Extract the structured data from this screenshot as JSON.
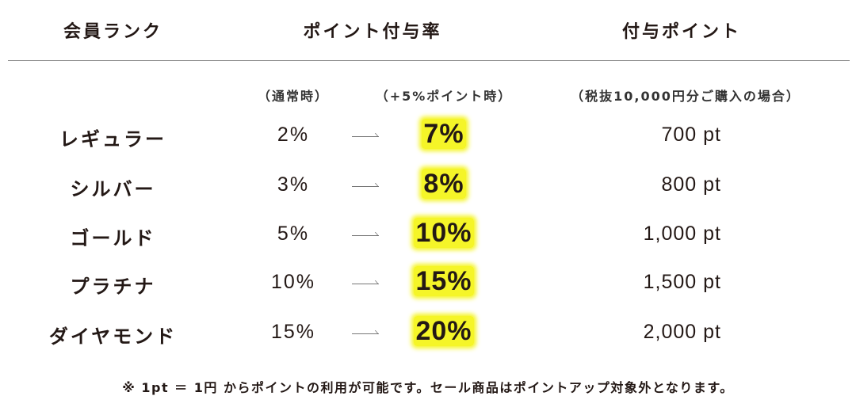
{
  "header": {
    "col_rank": "会員ランク",
    "col_rate": "ポイント付与率",
    "col_points": "付与ポイント"
  },
  "subheader": {
    "normal": "（通常時）",
    "boost": "（+5%ポイント時）",
    "points": "（税抜10,000円分ご購入の場合）"
  },
  "rows": [
    {
      "rank": "レギュラー",
      "base": "2%",
      "boost": "7%",
      "points": "700 pt"
    },
    {
      "rank": "シルバー",
      "base": "3%",
      "boost": "8%",
      "points": "800 pt"
    },
    {
      "rank": "ゴールド",
      "base": "5%",
      "boost": "10%",
      "points": "1,000 pt"
    },
    {
      "rank": "プラチナ",
      "base": "10%",
      "boost": "15%",
      "points": "1,500 pt"
    },
    {
      "rank": "ダイヤモンド",
      "base": "15%",
      "boost": "20%",
      "points": "2,000 pt"
    }
  ],
  "note": "※ 1pt ＝ 1円 からポイントの利用が可能です。セール商品はポイントアップ対象外となります。",
  "colors": {
    "highlight": "#f5f528",
    "text": "#231815",
    "divider": "#8a8a8a"
  }
}
